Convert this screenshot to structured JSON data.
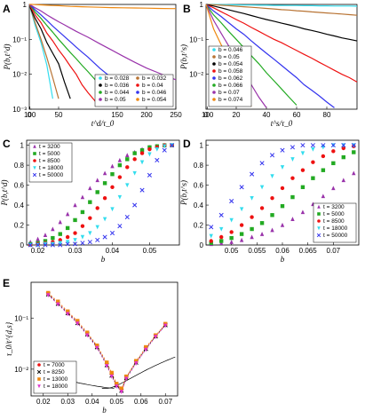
{
  "chart_data": [
    {
      "panel": "A",
      "type": "line",
      "x": [
        0,
        5,
        10,
        20,
        30,
        40,
        50,
        60,
        70,
        80,
        90,
        100,
        120,
        140,
        160,
        180,
        200,
        220,
        240,
        250
      ],
      "xlabel": "t^d/τ_0",
      "ylabel": "P(b,t^d)",
      "xlim": [
        0,
        250
      ],
      "ylim": [
        0.001,
        1
      ],
      "yscale": "log",
      "xticks": [
        "0",
        "50",
        "100",
        "150",
        "200",
        "250"
      ],
      "yticks": [
        "10⁻³",
        "10⁻²",
        "10⁻¹",
        "1"
      ],
      "legend_position": "bottom-right",
      "series": [
        {
          "name": "b = 0.028",
          "color": "#33ddee",
          "values": [
            1,
            0.5,
            0.25,
            0.08,
            0.018,
            0.002,
            null,
            null,
            null,
            null,
            null,
            null,
            null,
            null,
            null,
            null,
            null,
            null,
            null,
            null
          ]
        },
        {
          "name": "b = 0.032",
          "color": "#b87333",
          "values": [
            1,
            0.55,
            0.3,
            0.1,
            0.03,
            0.008,
            0.002,
            null,
            null,
            null,
            null,
            null,
            null,
            null,
            null,
            null,
            null,
            null,
            null,
            null
          ]
        },
        {
          "name": "b = 0.036",
          "color": "#000000",
          "values": [
            1,
            0.6,
            0.4,
            0.2,
            0.08,
            0.04,
            0.02,
            0.006,
            0.002,
            null,
            null,
            null,
            null,
            null,
            null,
            null,
            null,
            null,
            null,
            null
          ]
        },
        {
          "name": "b = 0.04",
          "color": "#ee1111",
          "values": [
            1,
            0.7,
            0.5,
            0.3,
            0.15,
            0.09,
            0.05,
            0.03,
            0.017,
            0.01,
            0.005,
            0.003,
            0.0012,
            null,
            null,
            null,
            null,
            null,
            null,
            null
          ]
        },
        {
          "name": "b = 0.044",
          "color": "#22aa22",
          "values": [
            1,
            0.8,
            0.6,
            0.4,
            0.25,
            0.16,
            0.1,
            0.065,
            0.042,
            0.028,
            0.018,
            0.012,
            0.005,
            0.002,
            null,
            null,
            null,
            null,
            null,
            null
          ]
        },
        {
          "name": "b = 0.046",
          "color": "#3333ee",
          "values": [
            1,
            0.85,
            0.7,
            0.5,
            0.35,
            0.24,
            0.17,
            0.12,
            0.085,
            0.06,
            0.043,
            0.031,
            0.015,
            0.008,
            0.004,
            0.002,
            null,
            null,
            null,
            null
          ]
        },
        {
          "name": "b = 0.05",
          "color": "#9933aa",
          "values": [
            1,
            0.9,
            0.8,
            0.65,
            0.5,
            0.4,
            0.32,
            0.26,
            0.21,
            0.17,
            0.14,
            0.115,
            0.075,
            0.05,
            0.033,
            0.022,
            0.015,
            0.011,
            0.008,
            0.007
          ]
        },
        {
          "name": "b = 0.054",
          "color": "#ee8811",
          "values": [
            1,
            1,
            0.99,
            0.97,
            0.95,
            0.93,
            0.92,
            0.9,
            0.88,
            0.87,
            0.86,
            0.85,
            0.83,
            0.81,
            0.8,
            0.79,
            0.78,
            0.77,
            0.76,
            0.76
          ]
        }
      ]
    },
    {
      "panel": "B",
      "type": "line",
      "x": [
        0,
        5,
        10,
        15,
        20,
        25,
        30,
        35,
        40,
        45,
        50,
        55,
        60,
        65,
        70,
        75,
        80,
        85,
        90,
        95,
        100
      ],
      "xlabel": "t^s/τ_0",
      "ylabel": "P(b,t^s)",
      "xlim": [
        0,
        100
      ],
      "ylim": [
        0.001,
        1
      ],
      "yscale": "log",
      "xticks": [
        "0",
        "20",
        "40",
        "60",
        "80",
        "100"
      ],
      "yticks": [
        "10⁻²",
        "10⁻¹",
        "1"
      ],
      "legend_position": "bottom-left",
      "series": [
        {
          "name": "b = 0.046",
          "color": "#33ddee",
          "values": [
            1,
            1,
            0.99,
            0.98,
            0.97,
            0.96,
            0.96,
            0.95,
            0.95,
            0.94,
            0.94,
            0.93,
            0.93,
            0.92,
            0.92,
            0.91,
            0.91,
            0.9,
            0.9,
            0.9,
            0.89
          ]
        },
        {
          "name": "b = 0.05",
          "color": "#b87333",
          "values": [
            1,
            0.98,
            0.95,
            0.92,
            0.89,
            0.86,
            0.83,
            0.8,
            0.77,
            0.74,
            0.71,
            0.69,
            0.66,
            0.64,
            0.61,
            0.59,
            0.57,
            0.55,
            0.53,
            0.51,
            0.49
          ]
        },
        {
          "name": "b = 0.054",
          "color": "#000000",
          "values": [
            1,
            0.9,
            0.8,
            0.7,
            0.62,
            0.55,
            0.48,
            0.42,
            0.37,
            0.33,
            0.29,
            0.26,
            0.23,
            0.2,
            0.18,
            0.16,
            0.14,
            0.125,
            0.11,
            0.1,
            0.09
          ]
        },
        {
          "name": "b = 0.058",
          "color": "#ee1111",
          "values": [
            1,
            0.8,
            0.62,
            0.48,
            0.37,
            0.29,
            0.22,
            0.17,
            0.13,
            0.1,
            0.08,
            0.062,
            0.048,
            0.037,
            0.029,
            0.022,
            0.017,
            0.013,
            0.01,
            0.008,
            0.006
          ]
        },
        {
          "name": "b = 0.062",
          "color": "#3333ee",
          "values": [
            1,
            0.65,
            0.45,
            0.3,
            0.2,
            0.14,
            0.09,
            0.06,
            0.04,
            0.027,
            0.018,
            0.012,
            0.008,
            0.005,
            0.0035,
            0.0024,
            0.0016,
            0.0011,
            null,
            null,
            null
          ]
        },
        {
          "name": "b = 0.066",
          "color": "#22aa22",
          "values": [
            1,
            0.5,
            0.3,
            0.17,
            0.1,
            0.058,
            0.034,
            0.02,
            0.011,
            0.0065,
            0.0038,
            0.0022,
            0.0013,
            null,
            null,
            null,
            null,
            null,
            null,
            null,
            null
          ]
        },
        {
          "name": "b = 0.07",
          "color": "#9933aa",
          "values": [
            1,
            0.35,
            0.15,
            0.065,
            0.028,
            0.012,
            0.005,
            0.0022,
            0.0011,
            null,
            null,
            null,
            null,
            null,
            null,
            null,
            null,
            null,
            null,
            null,
            null
          ]
        },
        {
          "name": "b = 0.074",
          "color": "#ee8811",
          "values": [
            1,
            0.2,
            0.07,
            0.025,
            0.009,
            0.0032,
            0.0012,
            null,
            null,
            null,
            null,
            null,
            null,
            null,
            null,
            null,
            null,
            null,
            null,
            null,
            null
          ]
        }
      ]
    },
    {
      "panel": "C",
      "type": "scatter",
      "x": [
        0.018,
        0.02,
        0.022,
        0.024,
        0.026,
        0.028,
        0.03,
        0.032,
        0.034,
        0.036,
        0.038,
        0.04,
        0.042,
        0.044,
        0.046,
        0.048,
        0.05,
        0.052,
        0.054,
        0.056
      ],
      "xlabel": "b",
      "ylabel": "P(b,t^d)",
      "xlim": [
        0.017,
        0.058
      ],
      "ylim": [
        0,
        1.05
      ],
      "xticks": [
        "0.02",
        "0.03",
        "0.04",
        "0.05"
      ],
      "yticks": [
        "0",
        "0.2",
        "0.4",
        "0.6",
        "0.8",
        "1"
      ],
      "legend_position": "top-left",
      "series": [
        {
          "name": "t = 3200",
          "color": "#9933aa",
          "marker": "triangle",
          "values": [
            0.03,
            0.06,
            0.1,
            0.16,
            0.23,
            0.31,
            0.4,
            0.48,
            0.57,
            0.65,
            0.72,
            0.79,
            0.85,
            0.9,
            0.93,
            0.96,
            0.98,
            0.99,
            1,
            1
          ]
        },
        {
          "name": "t = 5000",
          "color": "#22aa22",
          "marker": "square",
          "values": [
            0.01,
            0.02,
            0.04,
            0.07,
            0.11,
            0.17,
            0.25,
            0.33,
            0.43,
            0.53,
            0.62,
            0.71,
            0.8,
            0.86,
            0.92,
            0.95,
            0.98,
            0.99,
            1,
            1
          ]
        },
        {
          "name": "t = 8500",
          "color": "#ee1111",
          "marker": "circle",
          "values": [
            0,
            0.01,
            0.02,
            0.03,
            0.05,
            0.08,
            0.12,
            0.19,
            0.27,
            0.37,
            0.47,
            0.58,
            0.68,
            0.78,
            0.86,
            0.92,
            0.96,
            0.98,
            1,
            1
          ]
        },
        {
          "name": "t = 18000",
          "color": "#33ddee",
          "marker": "triangle-down",
          "values": [
            0,
            0,
            0.01,
            0.01,
            0.02,
            0.03,
            0.05,
            0.08,
            0.12,
            0.18,
            0.26,
            0.36,
            0.48,
            0.6,
            0.72,
            0.83,
            0.91,
            0.96,
            0.99,
            1
          ]
        },
        {
          "name": "t = 50000",
          "color": "#3333ee",
          "marker": "x",
          "values": [
            0,
            0,
            0,
            0,
            0,
            0.01,
            0.01,
            0.02,
            0.03,
            0.05,
            0.08,
            0.12,
            0.19,
            0.28,
            0.4,
            0.55,
            0.7,
            0.85,
            0.95,
            1
          ]
        }
      ]
    },
    {
      "panel": "D",
      "type": "scatter",
      "x": [
        0.046,
        0.048,
        0.05,
        0.052,
        0.054,
        0.056,
        0.058,
        0.06,
        0.062,
        0.064,
        0.066,
        0.068,
        0.07,
        0.072,
        0.074
      ],
      "xlabel": "b",
      "ylabel": "P(b,t^s)",
      "xlim": [
        0.045,
        0.075
      ],
      "ylim": [
        0,
        1.05
      ],
      "xticks": [
        "0.05",
        "0.055",
        "0.06",
        "0.065",
        "0.07"
      ],
      "yticks": [
        "0",
        "0.2",
        "0.4",
        "0.6",
        "0.8",
        "1"
      ],
      "legend_position": "bottom-right",
      "series": [
        {
          "name": "t = 3200",
          "color": "#9933aa",
          "marker": "triangle",
          "values": [
            0.01,
            0.02,
            0.03,
            0.05,
            0.08,
            0.11,
            0.15,
            0.2,
            0.26,
            0.33,
            0.41,
            0.49,
            0.57,
            0.65,
            0.72
          ]
        },
        {
          "name": "t = 5000",
          "color": "#22aa22",
          "marker": "square",
          "values": [
            0.02,
            0.04,
            0.07,
            0.11,
            0.16,
            0.22,
            0.3,
            0.39,
            0.48,
            0.58,
            0.67,
            0.75,
            0.82,
            0.88,
            0.93
          ]
        },
        {
          "name": "t = 8500",
          "color": "#ee1111",
          "marker": "circle",
          "values": [
            0.04,
            0.08,
            0.13,
            0.2,
            0.28,
            0.37,
            0.47,
            0.57,
            0.67,
            0.75,
            0.83,
            0.89,
            0.94,
            0.97,
            0.99
          ]
        },
        {
          "name": "t = 18000",
          "color": "#33ddee",
          "marker": "triangle-down",
          "values": [
            0.09,
            0.16,
            0.25,
            0.36,
            0.47,
            0.58,
            0.69,
            0.78,
            0.86,
            0.92,
            0.96,
            0.98,
            1,
            1,
            1
          ]
        },
        {
          "name": "t = 50000",
          "color": "#3333ee",
          "marker": "x",
          "values": [
            0.18,
            0.3,
            0.44,
            0.58,
            0.71,
            0.82,
            0.9,
            0.95,
            0.98,
            1,
            1,
            1,
            1,
            1,
            1
          ]
        }
      ]
    },
    {
      "panel": "E",
      "type": "scatter",
      "xlabel": "b",
      "ylabel": "τ_0/t^{d,s}",
      "xlim": [
        0.015,
        0.075
      ],
      "ylim": [
        0.003,
        0.5
      ],
      "yscale": "log",
      "xticks": [
        "0.02",
        "0.03",
        "0.04",
        "0.05",
        "0.06",
        "0.07"
      ],
      "yticks": [
        "10⁻²",
        "10⁻¹"
      ],
      "legend_position": "bottom-left",
      "x": [
        0.022,
        0.026,
        0.03,
        0.034,
        0.038,
        0.042,
        0.046,
        0.048,
        0.05,
        0.052,
        0.054,
        0.058,
        0.062,
        0.066,
        0.07
      ],
      "series": [
        {
          "name": "t = 7000",
          "color": "#ee1111",
          "marker": "circle",
          "values": [
            0.3,
            0.2,
            0.13,
            0.085,
            0.05,
            0.028,
            0.013,
            0.008,
            0.005,
            0.004,
            0.007,
            0.014,
            0.026,
            0.045,
            0.075
          ]
        },
        {
          "name": "t = 8250",
          "color": "#000000",
          "marker": "x",
          "values": [
            0.29,
            0.19,
            0.125,
            0.08,
            0.048,
            0.027,
            0.012,
            0.0075,
            0.0048,
            0.0038,
            0.0068,
            0.0135,
            0.025,
            0.044,
            0.073
          ]
        },
        {
          "name": "t = 13000",
          "color": "#ee8811",
          "marker": "square",
          "values": [
            0.31,
            0.21,
            0.135,
            0.088,
            0.052,
            0.029,
            0.0135,
            0.0085,
            0.0052,
            0.0042,
            0.0072,
            0.0145,
            0.027,
            0.046,
            0.077
          ]
        },
        {
          "name": "t = 18000",
          "color": "#dd33cc",
          "marker": "triangle-down",
          "values": [
            0.28,
            0.185,
            0.12,
            0.078,
            0.046,
            0.026,
            0.0115,
            0.0072,
            0.0046,
            0.0036,
            0.0065,
            0.013,
            0.024,
            0.043,
            0.071
          ]
        }
      ],
      "extra_series_left": {
        "name": "t = 8250 (blue)",
        "color": "#3333ee",
        "marker": "circle"
      },
      "extra_series_right": {
        "name": "t = 13000 (green)",
        "color": "#22aa22",
        "marker": "triangle"
      },
      "fit_line_color": "#000000"
    }
  ],
  "panel_labels": [
    "A",
    "B",
    "C",
    "D",
    "E"
  ]
}
